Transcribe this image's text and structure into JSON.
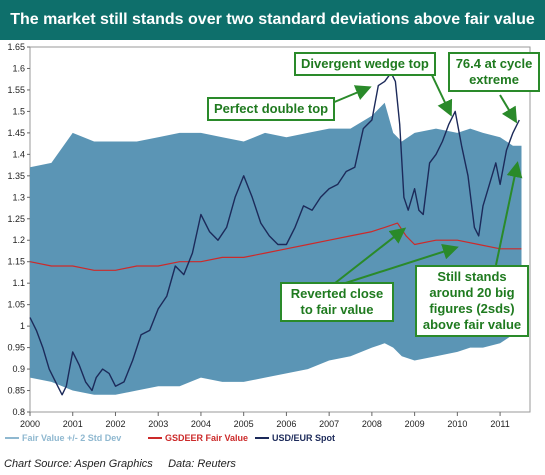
{
  "title": "The market still stands over two standard deviations above fair value",
  "source": {
    "label": "Chart Source: Aspen Graphics",
    "data": "Data: Reuters"
  },
  "colors": {
    "title_bg": "#0e6f6b",
    "band": "#5b95b5",
    "fair_value": "#cc2a2a",
    "spot": "#1c2a5a",
    "annotation": "#2a8a2a"
  },
  "chart_data": {
    "type": "line",
    "title": "The market still stands over two standard deviations above fair value",
    "xlabel": "",
    "ylabel": "",
    "xlim": [
      2000,
      2011.7
    ],
    "ylim": [
      0.8,
      1.65
    ],
    "x_ticks": [
      "2000",
      "2001",
      "2002",
      "2003",
      "2004",
      "2005",
      "2006",
      "2007",
      "2008",
      "2009",
      "2010",
      "2011"
    ],
    "y_ticks": [
      "0.8",
      "0.85",
      "0.9",
      "0.95",
      "1",
      "1.05",
      "1.1",
      "1.15",
      "1.2",
      "1.25",
      "1.3",
      "1.35",
      "1.4",
      "1.45",
      "1.5",
      "1.55",
      "1.6",
      "1.65"
    ],
    "legend": {
      "position": "bottom",
      "items": [
        {
          "label": "Fair Value +/- 2 Std Dev",
          "color": "#8fb8d0"
        },
        {
          "label": "GSDEER Fair Value",
          "color": "#cc2a2a"
        },
        {
          "label": "USD/EUR Spot",
          "color": "#1c2a5a"
        }
      ]
    },
    "series": [
      {
        "name": "Fair Value +/- 2 Std Dev",
        "kind": "band",
        "x": [
          2000.0,
          2000.5,
          2001.0,
          2001.5,
          2002.0,
          2002.5,
          2003.0,
          2003.5,
          2004.0,
          2004.5,
          2005.0,
          2005.5,
          2006.0,
          2006.5,
          2007.0,
          2007.5,
          2008.0,
          2008.3,
          2008.5,
          2008.7,
          2009.0,
          2009.5,
          2010.0,
          2010.3,
          2010.6,
          2011.0,
          2011.3,
          2011.5
        ],
        "upper": [
          1.37,
          1.38,
          1.45,
          1.43,
          1.43,
          1.43,
          1.44,
          1.45,
          1.45,
          1.44,
          1.43,
          1.45,
          1.44,
          1.45,
          1.46,
          1.46,
          1.49,
          1.52,
          1.45,
          1.43,
          1.45,
          1.46,
          1.45,
          1.46,
          1.45,
          1.44,
          1.42,
          1.42
        ],
        "lower": [
          0.88,
          0.87,
          0.85,
          0.84,
          0.84,
          0.85,
          0.86,
          0.86,
          0.88,
          0.87,
          0.87,
          0.88,
          0.89,
          0.9,
          0.92,
          0.93,
          0.95,
          0.96,
          0.95,
          0.93,
          0.92,
          0.93,
          0.94,
          0.95,
          0.95,
          0.96,
          0.98,
          0.98
        ]
      },
      {
        "name": "GSDEER Fair Value",
        "x": [
          2000.0,
          2000.5,
          2001.0,
          2001.5,
          2002.0,
          2002.5,
          2003.0,
          2003.5,
          2004.0,
          2004.5,
          2005.0,
          2005.5,
          2006.0,
          2006.5,
          2007.0,
          2007.5,
          2008.0,
          2008.3,
          2008.6,
          2008.8,
          2009.0,
          2009.5,
          2010.0,
          2010.5,
          2011.0,
          2011.5
        ],
        "values": [
          1.15,
          1.14,
          1.14,
          1.13,
          1.13,
          1.14,
          1.14,
          1.15,
          1.15,
          1.16,
          1.16,
          1.17,
          1.18,
          1.19,
          1.2,
          1.21,
          1.22,
          1.23,
          1.24,
          1.21,
          1.19,
          1.2,
          1.2,
          1.19,
          1.18,
          1.18
        ]
      },
      {
        "name": "USD/EUR Spot",
        "x": [
          2000.0,
          2000.15,
          2000.3,
          2000.45,
          2000.6,
          2000.75,
          2000.85,
          2001.0,
          2001.15,
          2001.3,
          2001.45,
          2001.55,
          2001.7,
          2001.85,
          2002.0,
          2002.2,
          2002.4,
          2002.6,
          2002.8,
          2003.0,
          2003.2,
          2003.4,
          2003.6,
          2003.8,
          2004.0,
          2004.2,
          2004.4,
          2004.6,
          2004.8,
          2005.0,
          2005.2,
          2005.4,
          2005.6,
          2005.8,
          2006.0,
          2006.2,
          2006.4,
          2006.6,
          2006.8,
          2007.0,
          2007.2,
          2007.4,
          2007.6,
          2007.8,
          2008.0,
          2008.15,
          2008.3,
          2008.45,
          2008.55,
          2008.65,
          2008.75,
          2008.85,
          2009.0,
          2009.1,
          2009.2,
          2009.35,
          2009.5,
          2009.65,
          2009.8,
          2009.95,
          2010.1,
          2010.25,
          2010.4,
          2010.5,
          2010.6,
          2010.75,
          2010.9,
          2011.0,
          2011.15,
          2011.3,
          2011.45
        ],
        "values": [
          1.02,
          0.99,
          0.95,
          0.9,
          0.87,
          0.84,
          0.86,
          0.94,
          0.91,
          0.87,
          0.85,
          0.88,
          0.9,
          0.89,
          0.86,
          0.87,
          0.92,
          0.98,
          0.99,
          1.04,
          1.07,
          1.14,
          1.12,
          1.17,
          1.26,
          1.22,
          1.2,
          1.23,
          1.3,
          1.35,
          1.3,
          1.24,
          1.21,
          1.19,
          1.19,
          1.23,
          1.28,
          1.27,
          1.3,
          1.32,
          1.33,
          1.36,
          1.37,
          1.46,
          1.48,
          1.56,
          1.57,
          1.59,
          1.57,
          1.47,
          1.3,
          1.27,
          1.32,
          1.27,
          1.26,
          1.38,
          1.4,
          1.43,
          1.47,
          1.5,
          1.42,
          1.35,
          1.23,
          1.21,
          1.28,
          1.33,
          1.38,
          1.33,
          1.41,
          1.45,
          1.48
        ]
      }
    ],
    "annotations": [
      {
        "text": "Perfect double top"
      },
      {
        "text": "Divergent wedge top"
      },
      {
        "text": "76.4 at cycle extreme"
      },
      {
        "text": "Reverted close to fair value"
      },
      {
        "text": "Still stands around 20 big figures (2sds) above fair value"
      }
    ]
  }
}
